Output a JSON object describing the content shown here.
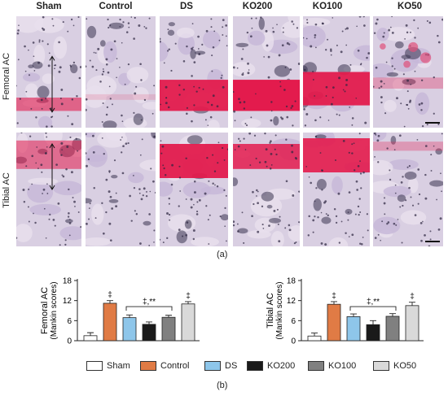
{
  "figure": {
    "column_labels": [
      "Sham",
      "Control",
      "DS",
      "KO200",
      "KO100",
      "KO50"
    ],
    "row_labels": [
      "Femoral AC",
      "Tibial AC"
    ],
    "panel_a_label": "(a)",
    "panel_b_label": "(b)"
  },
  "chart_data": [
    {
      "type": "bar",
      "title": "",
      "ylabel": "Femoral AC (Mankin scores)",
      "ylabel_line1": "Femoral AC",
      "ylabel_line2": "(Mankin scores)",
      "categories": [
        "Sham",
        "Control",
        "DS",
        "KO200",
        "KO100",
        "KO50"
      ],
      "values": [
        1.5,
        11.2,
        6.9,
        4.9,
        7.0,
        11.0
      ],
      "errors": [
        0.9,
        0.8,
        0.8,
        0.7,
        0.6,
        0.7
      ],
      "colors": [
        "#ffffff",
        "#e07b45",
        "#8ec6ea",
        "#1a1a1a",
        "#808080",
        "#d9d9d9"
      ],
      "ylim": [
        0,
        18
      ],
      "yticks": [
        0,
        6,
        12,
        18
      ],
      "annotations": {
        "control": "‡",
        "bracket": "‡,**",
        "ko50": "‡"
      }
    },
    {
      "type": "bar",
      "title": "",
      "ylabel": "Tibial AC (Mankin scores)",
      "ylabel_line1": "Tibial AC",
      "ylabel_line2": "(Mankin scores)",
      "categories": [
        "Sham",
        "Control",
        "DS",
        "KO200",
        "KO100",
        "KO50"
      ],
      "values": [
        1.4,
        10.9,
        7.2,
        4.8,
        7.3,
        10.5
      ],
      "errors": [
        0.9,
        0.8,
        0.8,
        1.2,
        0.8,
        1.0
      ],
      "colors": [
        "#ffffff",
        "#e07b45",
        "#8ec6ea",
        "#1a1a1a",
        "#808080",
        "#d9d9d9"
      ],
      "ylim": [
        0,
        18
      ],
      "yticks": [
        0,
        6,
        12,
        18
      ],
      "annotations": {
        "control": "‡",
        "bracket": "‡,**",
        "ko50": "‡"
      }
    }
  ],
  "legend": {
    "items": [
      {
        "label": "Sham",
        "color": "#ffffff"
      },
      {
        "label": "Control",
        "color": "#e07b45"
      },
      {
        "label": "DS",
        "color": "#8ec6ea"
      },
      {
        "label": "KO200",
        "color": "#1a1a1a"
      },
      {
        "label": "KO100",
        "color": "#808080"
      },
      {
        "label": "KO50",
        "color": "#d9d9d9"
      }
    ]
  }
}
